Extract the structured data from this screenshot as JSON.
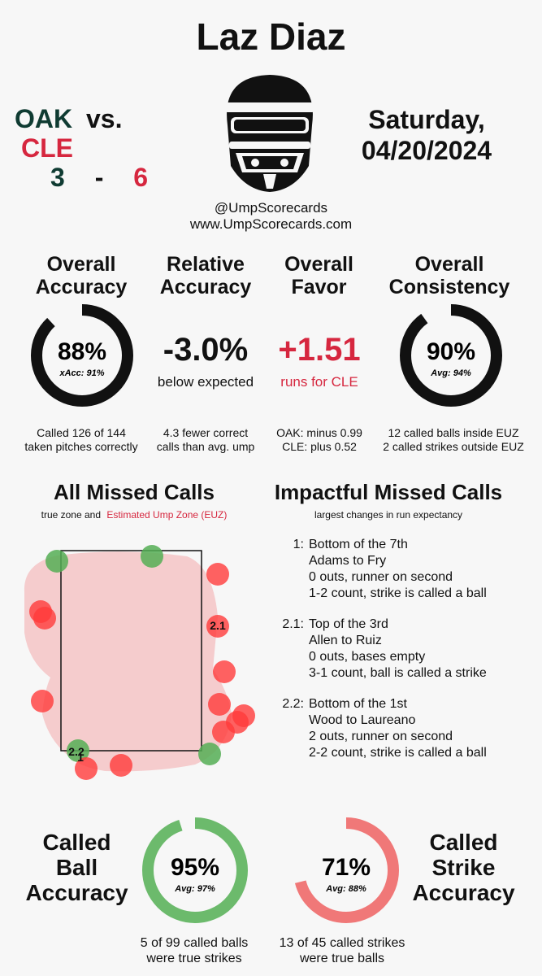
{
  "header": {
    "umpire": "Laz Diaz",
    "away_team": "OAK",
    "home_team": "CLE",
    "vs": "vs.",
    "away_score": "3",
    "dash": "-",
    "home_score": "6",
    "date_line1": "Saturday,",
    "date_line2": "04/20/2024",
    "handle": "@UmpScorecards",
    "website": "www.UmpScorecards.com",
    "colors": {
      "away": "#0f3b32",
      "home": "#d6273f"
    }
  },
  "stats": {
    "overall_accuracy": {
      "title1": "Overall",
      "title2": "Accuracy",
      "value": "88%",
      "sub": "xAcc: 91%",
      "fraction": 0.88,
      "note1": "Called 126 of 144",
      "note2": "taken pitches correctly"
    },
    "relative_accuracy": {
      "title1": "Relative",
      "title2": "Accuracy",
      "value": "-3.0%",
      "sub": "below expected",
      "note1": "4.3 fewer correct",
      "note2": "calls than avg. ump"
    },
    "overall_favor": {
      "title1": "Overall",
      "title2": "Favor",
      "value": "+1.51",
      "sub": "runs for CLE",
      "note1": "OAK: minus 0.99",
      "note2": "CLE: plus 0.52"
    },
    "overall_consistency": {
      "title1": "Overall",
      "title2": "Consistency",
      "value": "90%",
      "sub": "Avg: 94%",
      "fraction": 0.9,
      "note1": "12 called balls inside EUZ",
      "note2": "2 called strikes outside EUZ"
    }
  },
  "missed_calls": {
    "title": "All Missed Calls",
    "subtitle_prefix": "true zone and",
    "subtitle_euz": "Estimated Ump Zone (EUZ)",
    "labels": [
      "2.1",
      "2.2",
      "1"
    ]
  },
  "impactful": {
    "title": "Impactful Missed Calls",
    "subtitle": "largest changes in run expectancy",
    "calls": [
      {
        "num": "1:",
        "lines": [
          "Bottom of the 7th",
          "Adams to Fry",
          "0 outs, runner on second",
          "1-2 count, strike is called a ball"
        ]
      },
      {
        "num": "2.1:",
        "lines": [
          "Top of the 3rd",
          "Allen to Ruiz",
          "0 outs, bases empty",
          "3-1 count, ball is called a strike"
        ]
      },
      {
        "num": "2.2:",
        "lines": [
          "Bottom of the 1st",
          "Wood to Laureano",
          "2 outs, runner on second",
          "2-2 count, strike is called a ball"
        ]
      }
    ]
  },
  "footer": {
    "ball": {
      "title1": "Called",
      "title2": "Ball",
      "title3": "Accuracy",
      "value": "95%",
      "sub": "Avg: 97%",
      "fraction": 0.95,
      "note1": "5 of 99 called balls",
      "note2": "were true strikes"
    },
    "strike": {
      "title1": "Called",
      "title2": "Strike",
      "title3": "Accuracy",
      "value": "71%",
      "sub": "Avg: 88%",
      "fraction": 0.71,
      "note1": "13 of 45 called strikes",
      "note2": "were true balls"
    }
  }
}
